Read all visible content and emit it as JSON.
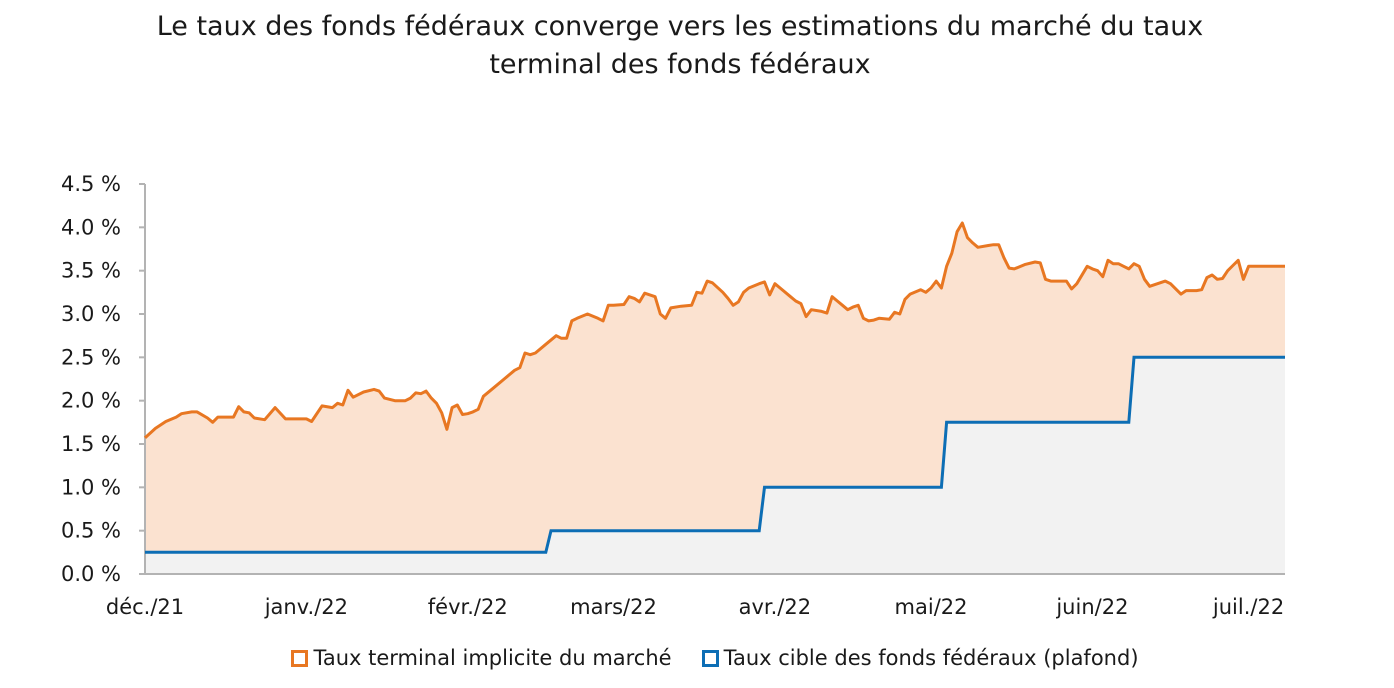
{
  "chart_data": {
    "type": "area",
    "title_lines": [
      "Le taux des fonds fédéraux converge vers les estimations du marché du taux",
      "terminal des fonds fédéraux"
    ],
    "xlabel": "",
    "ylabel": "",
    "ylim": [
      0,
      4.5
    ],
    "y_ticks": [
      0,
      0.5,
      1.0,
      1.5,
      2.0,
      2.5,
      3.0,
      3.5,
      4.0,
      4.5
    ],
    "y_tick_labels": [
      "0.0 %",
      "0.5 %",
      "1.0 %",
      "1.5 %",
      "2.0 %",
      "2.5 %",
      "3.0 %",
      "3.5 %",
      "4.0 %",
      "4.5 %"
    ],
    "xlim": [
      "2021-12-01",
      "2022-07-08"
    ],
    "x_ticks": [
      "2021-12-01",
      "2022-01-01",
      "2022-02-01",
      "2022-03-01",
      "2022-04-01",
      "2022-05-01",
      "2022-06-01",
      "2022-07-01"
    ],
    "x_tick_labels": [
      "déc./21",
      "janv./22",
      "févr./22",
      "mars/22",
      "avr./22",
      "mai/22",
      "juin/22",
      "juil./22"
    ],
    "grid": false,
    "legend_position": "bottom",
    "colors": {
      "market_line": "#e87722",
      "market_fill": "#fbe2d0",
      "fed_line": "#0d6eb5",
      "fed_fill": "#f2f2f2",
      "axis": "#b3b3b3"
    },
    "series": [
      {
        "name": "Taux terminal implicite du marché",
        "points": [
          [
            "2021-12-01",
            1.57
          ],
          [
            "2021-12-03",
            1.68
          ],
          [
            "2021-12-05",
            1.76
          ],
          [
            "2021-12-07",
            1.81
          ],
          [
            "2021-12-08",
            1.85
          ],
          [
            "2021-12-10",
            1.87
          ],
          [
            "2021-12-11",
            1.87
          ],
          [
            "2021-12-13",
            1.8
          ],
          [
            "2021-12-14",
            1.75
          ],
          [
            "2021-12-15",
            1.81
          ],
          [
            "2021-12-18",
            1.81
          ],
          [
            "2021-12-19",
            1.93
          ],
          [
            "2021-12-20",
            1.87
          ],
          [
            "2021-12-21",
            1.86
          ],
          [
            "2021-12-22",
            1.8
          ],
          [
            "2021-12-24",
            1.78
          ],
          [
            "2021-12-26",
            1.92
          ],
          [
            "2021-12-28",
            1.79
          ],
          [
            "2021-12-31",
            1.79
          ],
          [
            "2022-01-01",
            1.79
          ],
          [
            "2022-01-02",
            1.76
          ],
          [
            "2022-01-04",
            1.94
          ],
          [
            "2022-01-06",
            1.92
          ],
          [
            "2022-01-07",
            1.97
          ],
          [
            "2022-01-08",
            1.95
          ],
          [
            "2022-01-09",
            2.12
          ],
          [
            "2022-01-10",
            2.04
          ],
          [
            "2022-01-12",
            2.1
          ],
          [
            "2022-01-14",
            2.13
          ],
          [
            "2022-01-15",
            2.11
          ],
          [
            "2022-01-16",
            2.03
          ],
          [
            "2022-01-18",
            2.0
          ],
          [
            "2022-01-20",
            2.0
          ],
          [
            "2022-01-21",
            2.03
          ],
          [
            "2022-01-22",
            2.09
          ],
          [
            "2022-01-23",
            2.08
          ],
          [
            "2022-01-24",
            2.11
          ],
          [
            "2022-01-25",
            2.03
          ],
          [
            "2022-01-26",
            1.97
          ],
          [
            "2022-01-27",
            1.86
          ],
          [
            "2022-01-28",
            1.67
          ],
          [
            "2022-01-29",
            1.92
          ],
          [
            "2022-01-30",
            1.95
          ],
          [
            "2022-01-31",
            1.84
          ],
          [
            "2022-02-01",
            1.85
          ],
          [
            "2022-02-02",
            1.87
          ],
          [
            "2022-02-03",
            1.9
          ],
          [
            "2022-02-04",
            2.05
          ],
          [
            "2022-02-06",
            2.15
          ],
          [
            "2022-02-08",
            2.25
          ],
          [
            "2022-02-10",
            2.35
          ],
          [
            "2022-02-11",
            2.38
          ],
          [
            "2022-02-12",
            2.55
          ],
          [
            "2022-02-13",
            2.53
          ],
          [
            "2022-02-14",
            2.55
          ],
          [
            "2022-02-16",
            2.65
          ],
          [
            "2022-02-18",
            2.75
          ],
          [
            "2022-02-19",
            2.72
          ],
          [
            "2022-02-20",
            2.72
          ],
          [
            "2022-02-21",
            2.92
          ],
          [
            "2022-02-22",
            2.95
          ],
          [
            "2022-02-24",
            3.0
          ],
          [
            "2022-02-26",
            2.95
          ],
          [
            "2022-02-27",
            2.92
          ],
          [
            "2022-02-28",
            3.1
          ],
          [
            "2022-03-01",
            3.1
          ],
          [
            "2022-03-03",
            3.11
          ],
          [
            "2022-03-04",
            3.2
          ],
          [
            "2022-03-05",
            3.18
          ],
          [
            "2022-03-06",
            3.14
          ],
          [
            "2022-03-07",
            3.24
          ],
          [
            "2022-03-08",
            3.22
          ],
          [
            "2022-03-09",
            3.2
          ],
          [
            "2022-03-10",
            3.0
          ],
          [
            "2022-03-11",
            2.95
          ],
          [
            "2022-03-12",
            3.07
          ],
          [
            "2022-03-14",
            3.09
          ],
          [
            "2022-03-16",
            3.1
          ],
          [
            "2022-03-17",
            3.25
          ],
          [
            "2022-03-18",
            3.24
          ],
          [
            "2022-03-19",
            3.38
          ],
          [
            "2022-03-20",
            3.36
          ],
          [
            "2022-03-22",
            3.25
          ],
          [
            "2022-03-23",
            3.18
          ],
          [
            "2022-03-24",
            3.1
          ],
          [
            "2022-03-25",
            3.14
          ],
          [
            "2022-03-26",
            3.25
          ],
          [
            "2022-03-27",
            3.3
          ],
          [
            "2022-03-29",
            3.35
          ],
          [
            "2022-03-30",
            3.37
          ],
          [
            "2022-03-31",
            3.22
          ],
          [
            "2022-04-01",
            3.35
          ],
          [
            "2022-04-02",
            3.3
          ],
          [
            "2022-04-04",
            3.2
          ],
          [
            "2022-04-05",
            3.15
          ],
          [
            "2022-04-06",
            3.12
          ],
          [
            "2022-04-07",
            2.97
          ],
          [
            "2022-04-08",
            3.05
          ],
          [
            "2022-04-10",
            3.03
          ],
          [
            "2022-04-11",
            3.01
          ],
          [
            "2022-04-12",
            3.2
          ],
          [
            "2022-04-13",
            3.15
          ],
          [
            "2022-04-14",
            3.1
          ],
          [
            "2022-04-15",
            3.05
          ],
          [
            "2022-04-16",
            3.08
          ],
          [
            "2022-04-17",
            3.1
          ],
          [
            "2022-04-18",
            2.95
          ],
          [
            "2022-04-19",
            2.92
          ],
          [
            "2022-04-20",
            2.93
          ],
          [
            "2022-04-21",
            2.95
          ],
          [
            "2022-04-23",
            2.94
          ],
          [
            "2022-04-24",
            3.02
          ],
          [
            "2022-04-25",
            3.0
          ],
          [
            "2022-04-26",
            3.17
          ],
          [
            "2022-04-27",
            3.23
          ],
          [
            "2022-04-29",
            3.28
          ],
          [
            "2022-04-30",
            3.25
          ],
          [
            "2022-05-01",
            3.3
          ],
          [
            "2022-05-02",
            3.38
          ],
          [
            "2022-05-03",
            3.3
          ],
          [
            "2022-05-04",
            3.55
          ],
          [
            "2022-05-05",
            3.7
          ],
          [
            "2022-05-06",
            3.95
          ],
          [
            "2022-05-07",
            4.05
          ],
          [
            "2022-05-08",
            3.88
          ],
          [
            "2022-05-09",
            3.82
          ],
          [
            "2022-05-10",
            3.77
          ],
          [
            "2022-05-12",
            3.79
          ],
          [
            "2022-05-13",
            3.8
          ],
          [
            "2022-05-14",
            3.8
          ],
          [
            "2022-05-15",
            3.65
          ],
          [
            "2022-05-16",
            3.53
          ],
          [
            "2022-05-17",
            3.52
          ],
          [
            "2022-05-19",
            3.57
          ],
          [
            "2022-05-21",
            3.6
          ],
          [
            "2022-05-22",
            3.59
          ],
          [
            "2022-05-23",
            3.4
          ],
          [
            "2022-05-24",
            3.38
          ],
          [
            "2022-05-25",
            3.38
          ],
          [
            "2022-05-27",
            3.38
          ],
          [
            "2022-05-28",
            3.29
          ],
          [
            "2022-05-29",
            3.35
          ],
          [
            "2022-05-31",
            3.55
          ],
          [
            "2022-06-01",
            3.52
          ],
          [
            "2022-06-02",
            3.5
          ],
          [
            "2022-06-03",
            3.43
          ],
          [
            "2022-06-04",
            3.62
          ],
          [
            "2022-06-05",
            3.58
          ],
          [
            "2022-06-06",
            3.58
          ],
          [
            "2022-06-07",
            3.55
          ],
          [
            "2022-06-08",
            3.52
          ],
          [
            "2022-06-09",
            3.58
          ],
          [
            "2022-06-10",
            3.55
          ],
          [
            "2022-06-11",
            3.4
          ],
          [
            "2022-06-12",
            3.32
          ],
          [
            "2022-06-14",
            3.36
          ],
          [
            "2022-06-15",
            3.38
          ],
          [
            "2022-06-16",
            3.35
          ],
          [
            "2022-06-18",
            3.23
          ],
          [
            "2022-06-19",
            3.27
          ],
          [
            "2022-06-21",
            3.27
          ],
          [
            "2022-06-22",
            3.28
          ],
          [
            "2022-06-23",
            3.42
          ],
          [
            "2022-06-24",
            3.45
          ],
          [
            "2022-06-25",
            3.4
          ],
          [
            "2022-06-26",
            3.41
          ],
          [
            "2022-06-27",
            3.5
          ],
          [
            "2022-06-28",
            3.56
          ],
          [
            "2022-06-29",
            3.62
          ],
          [
            "2022-06-30",
            3.4
          ],
          [
            "2022-07-01",
            3.55
          ]
        ]
      },
      {
        "name": "Taux cible des fonds fédéraux (plafond)",
        "step": true,
        "points": [
          [
            "2021-12-01",
            0.25
          ],
          [
            "2022-02-16",
            0.25
          ],
          [
            "2022-02-17",
            0.5
          ],
          [
            "2022-03-29",
            0.5
          ],
          [
            "2022-03-30",
            1.0
          ],
          [
            "2022-05-03",
            1.0
          ],
          [
            "2022-05-04",
            1.75
          ],
          [
            "2022-06-08",
            1.75
          ],
          [
            "2022-06-09",
            2.5
          ],
          [
            "2022-07-01",
            2.5
          ]
        ]
      }
    ]
  }
}
